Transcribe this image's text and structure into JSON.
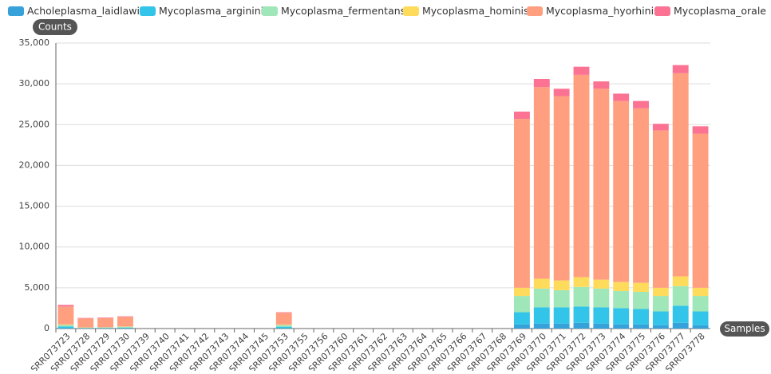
{
  "chart_data": {
    "type": "bar",
    "stacked": true,
    "y_label": "Counts",
    "x_label": "Samples",
    "categories": [
      "SRR073723",
      "SRR073728",
      "SRR073729",
      "SRR073730",
      "SRR073739",
      "SRR073740",
      "SRR073741",
      "SRR073742",
      "SRR073743",
      "SRR073744",
      "SRR073745",
      "SRR073753",
      "SRR073755",
      "SRR073756",
      "SRR073760",
      "SRR073761",
      "SRR073762",
      "SRR073763",
      "SRR073764",
      "SRR073765",
      "SRR073766",
      "SRR073767",
      "SRR073768",
      "SRR073769",
      "SRR073770",
      "SRR073771",
      "SRR073772",
      "SRR073773",
      "SRR073774",
      "SRR073775",
      "SRR073776",
      "SRR073777",
      "SRR073778"
    ],
    "series": [
      {
        "name": "Acholeplasma_laidlawii",
        "color": "#37a2da",
        "values": [
          50,
          20,
          20,
          20,
          0,
          0,
          0,
          0,
          0,
          0,
          0,
          30,
          0,
          0,
          0,
          0,
          0,
          0,
          0,
          0,
          0,
          0,
          0,
          500,
          600,
          600,
          700,
          600,
          500,
          500,
          400,
          700,
          400
        ]
      },
      {
        "name": "Mycoplasma_arginini",
        "color": "#32c5e9",
        "values": [
          200,
          50,
          60,
          100,
          0,
          0,
          0,
          0,
          0,
          0,
          0,
          200,
          0,
          0,
          0,
          0,
          0,
          0,
          0,
          0,
          0,
          0,
          0,
          1500,
          2000,
          2000,
          2000,
          2000,
          2000,
          1900,
          1700,
          2100,
          1700
        ]
      },
      {
        "name": "Mycoplasma_fermentans",
        "color": "#9fe6b8",
        "values": [
          200,
          50,
          60,
          100,
          0,
          0,
          0,
          0,
          0,
          0,
          0,
          200,
          0,
          0,
          0,
          0,
          0,
          0,
          0,
          0,
          0,
          0,
          0,
          2000,
          2300,
          2100,
          2400,
          2300,
          2100,
          2100,
          1900,
          2400,
          1900
        ]
      },
      {
        "name": "Mycoplasma_hominis",
        "color": "#ffdb5c",
        "values": [
          50,
          20,
          20,
          30,
          0,
          0,
          0,
          0,
          0,
          0,
          0,
          50,
          0,
          0,
          0,
          0,
          0,
          0,
          0,
          0,
          0,
          0,
          0,
          1000,
          1200,
          1200,
          1200,
          1100,
          1100,
          1100,
          1000,
          1200,
          1000
        ]
      },
      {
        "name": "Mycoplasma_hyorhinis",
        "color": "#ff9f7f",
        "values": [
          2200,
          1100,
          1130,
          1180,
          0,
          0,
          0,
          0,
          0,
          0,
          0,
          1450,
          0,
          0,
          0,
          0,
          0,
          0,
          0,
          0,
          0,
          0,
          0,
          20700,
          23500,
          22600,
          24800,
          23400,
          22200,
          21400,
          19300,
          24900,
          18900
        ]
      },
      {
        "name": "Mycoplasma_orale",
        "color": "#fb7293",
        "values": [
          200,
          60,
          60,
          70,
          0,
          0,
          0,
          0,
          0,
          0,
          0,
          70,
          0,
          0,
          0,
          0,
          0,
          0,
          0,
          0,
          0,
          0,
          0,
          900,
          1000,
          900,
          1000,
          900,
          900,
          900,
          800,
          1000,
          900
        ]
      }
    ],
    "ylim": [
      0,
      35000
    ],
    "yticks": [
      0,
      {
        "value": 5000,
        "label": "5,000"
      },
      {
        "value": 10000,
        "label": "10,000"
      },
      {
        "value": 15000,
        "label": "15,000"
      },
      {
        "value": 20000,
        "label": "20,000"
      },
      {
        "value": 25000,
        "label": "25,000"
      },
      {
        "value": 30000,
        "label": "30,000"
      },
      {
        "value": 35000,
        "label": "35,000"
      }
    ],
    "grid": true,
    "legend": "top"
  }
}
